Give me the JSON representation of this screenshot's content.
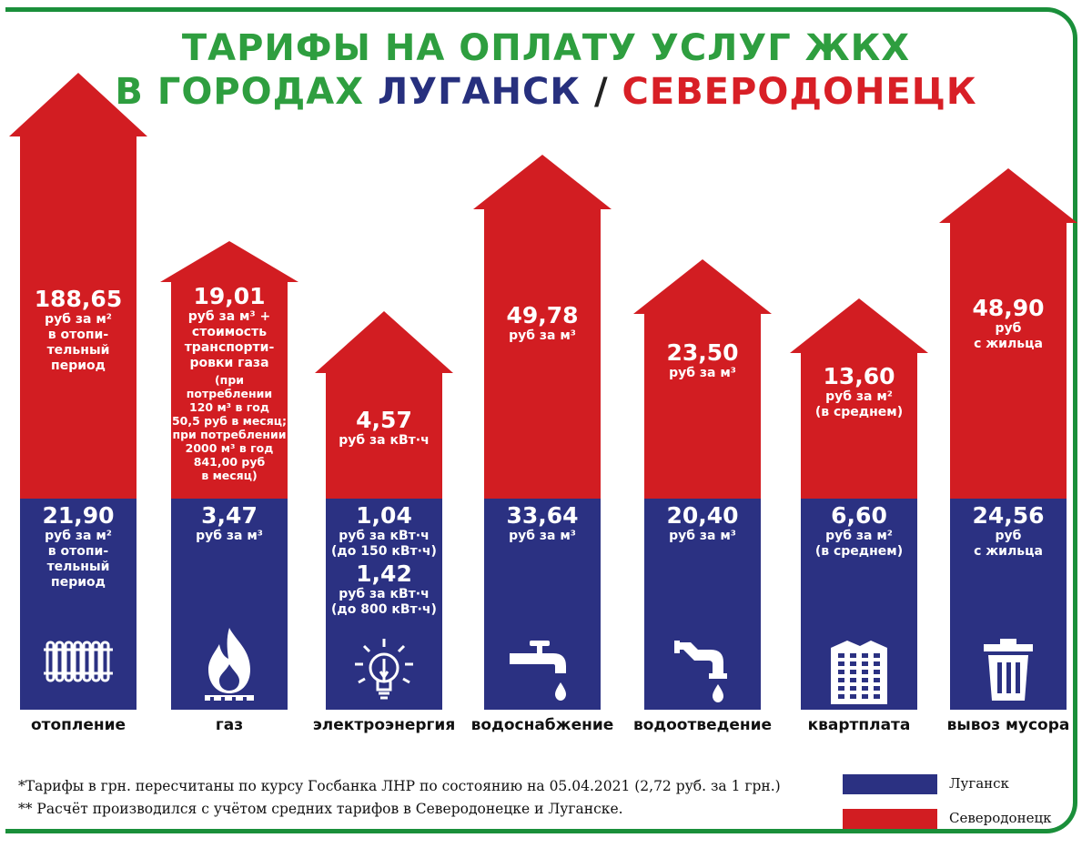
{
  "title": {
    "line1": "ТАРИФЫ НА ОПЛАТУ УСЛУГ ЖКХ",
    "line2_prefix": "В ГОРОДАХ ",
    "city1": "ЛУГАНСК",
    "sep": " / ",
    "city2": "СЕВЕРОДОНЕЦК"
  },
  "colors": {
    "lugansk": "#2b3182",
    "severodonetsk": "#d21d22",
    "title_green": "#2e9e3f"
  },
  "chart_data": {
    "type": "bar",
    "categories": [
      "отопление",
      "газ",
      "электроэнергия",
      "водоснабжение",
      "водоотведение",
      "квартплата",
      "вывоз мусора"
    ],
    "series": [
      {
        "name": "Луганск",
        "values": [
          21.9,
          3.47,
          1.04,
          33.64,
          20.4,
          6.6,
          24.56
        ]
      },
      {
        "name": "Северодонецк",
        "values": [
          188.65,
          19.01,
          4.57,
          49.78,
          23.5,
          13.6,
          48.9
        ]
      }
    ],
    "bars": [
      {
        "category": "отопление",
        "icon": "radiator-icon",
        "red_value": "188,65",
        "red_unit": "руб за м²\nв отопи-\nтельный\nпериод",
        "red_note": "",
        "blue_value": "21,90",
        "blue_unit": "руб за м²\nв отопи-\nтельный\nпериод",
        "blue_value2": "",
        "blue_unit2": ""
      },
      {
        "category": "газ",
        "icon": "gas-flame-icon",
        "red_value": "19,01",
        "red_unit": "руб за м³ +\nстоимость\nтранспорти-\nровки газа",
        "red_note": "(при потреблении\n120 м³ в год\n50,5 руб в месяц;\nпри потреблении\n2000 м³  в год\n841,00 руб\nв месяц)",
        "blue_value": "3,47",
        "blue_unit": "руб за м³",
        "blue_value2": "",
        "blue_unit2": ""
      },
      {
        "category": "электроэнергия",
        "icon": "light-bulb-icon",
        "red_value": "4,57",
        "red_unit": "руб за кВт·ч",
        "red_note": "",
        "blue_value": "1,04",
        "blue_unit": "руб за кВт·ч\n(до 150 кВт·ч)",
        "blue_value2": "1,42",
        "blue_unit2": "руб за кВт·ч\n(до 800 кВт·ч)"
      },
      {
        "category": "водоснабжение",
        "icon": "water-tap-icon",
        "red_value": "49,78",
        "red_unit": "руб за м³",
        "red_note": "",
        "blue_value": "33,64",
        "blue_unit": "руб за м³",
        "blue_value2": "",
        "blue_unit2": ""
      },
      {
        "category": "водоотведение",
        "icon": "drain-pipe-icon",
        "red_value": "23,50",
        "red_unit": "руб за м³",
        "red_note": "",
        "blue_value": "20,40",
        "blue_unit": "руб за м³",
        "blue_value2": "",
        "blue_unit2": ""
      },
      {
        "category": "квартплата",
        "icon": "apartment-building-icon",
        "red_value": "13,60",
        "red_unit": "руб за м²\n(в среднем)",
        "red_note": "",
        "blue_value": "6,60",
        "blue_unit": "руб за м²\n(в среднем)",
        "blue_value2": "",
        "blue_unit2": ""
      },
      {
        "category": "вывоз мусора",
        "icon": "trash-bin-icon",
        "red_value": "48,90",
        "red_unit": "руб\nс жильца",
        "red_note": "",
        "blue_value": "24,56",
        "blue_unit": "руб\nс жильца",
        "blue_value2": "",
        "blue_unit2": ""
      }
    ],
    "legend": [
      "Луганск",
      "Северодонецк"
    ],
    "legend_position": "bottom-right"
  },
  "notes": {
    "note1": "*Тарифы в грн. пересчитаны по курсу Госбанка ЛНР по состоянию на 05.04.2021 (2,72 руб. за 1 грн.)",
    "note2": "** Расчёт производился с учётом средних тарифов в Северодонецке и Луганске."
  }
}
